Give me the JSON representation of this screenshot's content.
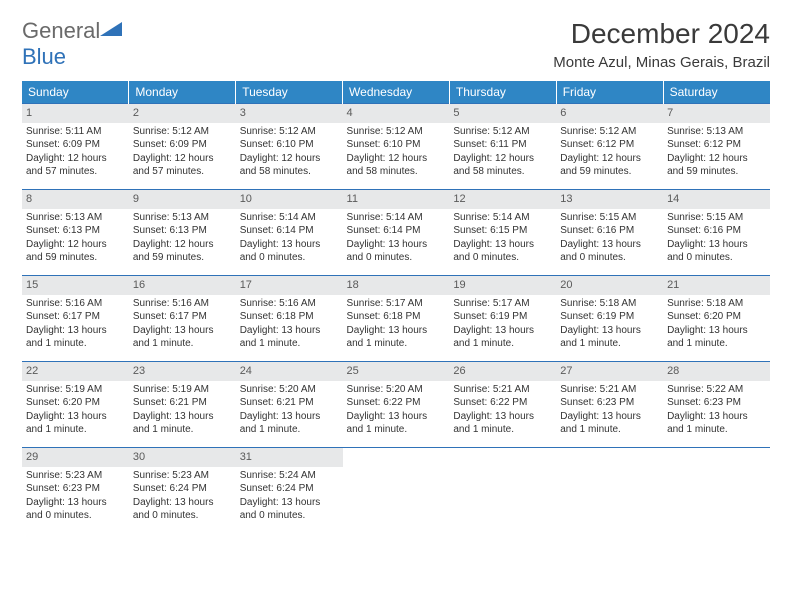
{
  "logo": {
    "text_general": "General",
    "text_blue": "Blue"
  },
  "title": "December 2024",
  "location": "Monte Azul, Minas Gerais, Brazil",
  "colors": {
    "header_bg": "#2f86c5",
    "header_text": "#ffffff",
    "row_border": "#2f72b8",
    "daynum_bg": "#e7e8e9",
    "daynum_text": "#5a5a5a",
    "body_text": "#333333",
    "logo_gray": "#6a6a6a",
    "logo_blue": "#2f72b8"
  },
  "days_of_week": [
    "Sunday",
    "Monday",
    "Tuesday",
    "Wednesday",
    "Thursday",
    "Friday",
    "Saturday"
  ],
  "weeks": [
    [
      {
        "n": "1",
        "sr": "Sunrise: 5:11 AM",
        "ss": "Sunset: 6:09 PM",
        "dl": "Daylight: 12 hours and 57 minutes."
      },
      {
        "n": "2",
        "sr": "Sunrise: 5:12 AM",
        "ss": "Sunset: 6:09 PM",
        "dl": "Daylight: 12 hours and 57 minutes."
      },
      {
        "n": "3",
        "sr": "Sunrise: 5:12 AM",
        "ss": "Sunset: 6:10 PM",
        "dl": "Daylight: 12 hours and 58 minutes."
      },
      {
        "n": "4",
        "sr": "Sunrise: 5:12 AM",
        "ss": "Sunset: 6:10 PM",
        "dl": "Daylight: 12 hours and 58 minutes."
      },
      {
        "n": "5",
        "sr": "Sunrise: 5:12 AM",
        "ss": "Sunset: 6:11 PM",
        "dl": "Daylight: 12 hours and 58 minutes."
      },
      {
        "n": "6",
        "sr": "Sunrise: 5:12 AM",
        "ss": "Sunset: 6:12 PM",
        "dl": "Daylight: 12 hours and 59 minutes."
      },
      {
        "n": "7",
        "sr": "Sunrise: 5:13 AM",
        "ss": "Sunset: 6:12 PM",
        "dl": "Daylight: 12 hours and 59 minutes."
      }
    ],
    [
      {
        "n": "8",
        "sr": "Sunrise: 5:13 AM",
        "ss": "Sunset: 6:13 PM",
        "dl": "Daylight: 12 hours and 59 minutes."
      },
      {
        "n": "9",
        "sr": "Sunrise: 5:13 AM",
        "ss": "Sunset: 6:13 PM",
        "dl": "Daylight: 12 hours and 59 minutes."
      },
      {
        "n": "10",
        "sr": "Sunrise: 5:14 AM",
        "ss": "Sunset: 6:14 PM",
        "dl": "Daylight: 13 hours and 0 minutes."
      },
      {
        "n": "11",
        "sr": "Sunrise: 5:14 AM",
        "ss": "Sunset: 6:14 PM",
        "dl": "Daylight: 13 hours and 0 minutes."
      },
      {
        "n": "12",
        "sr": "Sunrise: 5:14 AM",
        "ss": "Sunset: 6:15 PM",
        "dl": "Daylight: 13 hours and 0 minutes."
      },
      {
        "n": "13",
        "sr": "Sunrise: 5:15 AM",
        "ss": "Sunset: 6:16 PM",
        "dl": "Daylight: 13 hours and 0 minutes."
      },
      {
        "n": "14",
        "sr": "Sunrise: 5:15 AM",
        "ss": "Sunset: 6:16 PM",
        "dl": "Daylight: 13 hours and 0 minutes."
      }
    ],
    [
      {
        "n": "15",
        "sr": "Sunrise: 5:16 AM",
        "ss": "Sunset: 6:17 PM",
        "dl": "Daylight: 13 hours and 1 minute."
      },
      {
        "n": "16",
        "sr": "Sunrise: 5:16 AM",
        "ss": "Sunset: 6:17 PM",
        "dl": "Daylight: 13 hours and 1 minute."
      },
      {
        "n": "17",
        "sr": "Sunrise: 5:16 AM",
        "ss": "Sunset: 6:18 PM",
        "dl": "Daylight: 13 hours and 1 minute."
      },
      {
        "n": "18",
        "sr": "Sunrise: 5:17 AM",
        "ss": "Sunset: 6:18 PM",
        "dl": "Daylight: 13 hours and 1 minute."
      },
      {
        "n": "19",
        "sr": "Sunrise: 5:17 AM",
        "ss": "Sunset: 6:19 PM",
        "dl": "Daylight: 13 hours and 1 minute."
      },
      {
        "n": "20",
        "sr": "Sunrise: 5:18 AM",
        "ss": "Sunset: 6:19 PM",
        "dl": "Daylight: 13 hours and 1 minute."
      },
      {
        "n": "21",
        "sr": "Sunrise: 5:18 AM",
        "ss": "Sunset: 6:20 PM",
        "dl": "Daylight: 13 hours and 1 minute."
      }
    ],
    [
      {
        "n": "22",
        "sr": "Sunrise: 5:19 AM",
        "ss": "Sunset: 6:20 PM",
        "dl": "Daylight: 13 hours and 1 minute."
      },
      {
        "n": "23",
        "sr": "Sunrise: 5:19 AM",
        "ss": "Sunset: 6:21 PM",
        "dl": "Daylight: 13 hours and 1 minute."
      },
      {
        "n": "24",
        "sr": "Sunrise: 5:20 AM",
        "ss": "Sunset: 6:21 PM",
        "dl": "Daylight: 13 hours and 1 minute."
      },
      {
        "n": "25",
        "sr": "Sunrise: 5:20 AM",
        "ss": "Sunset: 6:22 PM",
        "dl": "Daylight: 13 hours and 1 minute."
      },
      {
        "n": "26",
        "sr": "Sunrise: 5:21 AM",
        "ss": "Sunset: 6:22 PM",
        "dl": "Daylight: 13 hours and 1 minute."
      },
      {
        "n": "27",
        "sr": "Sunrise: 5:21 AM",
        "ss": "Sunset: 6:23 PM",
        "dl": "Daylight: 13 hours and 1 minute."
      },
      {
        "n": "28",
        "sr": "Sunrise: 5:22 AM",
        "ss": "Sunset: 6:23 PM",
        "dl": "Daylight: 13 hours and 1 minute."
      }
    ],
    [
      {
        "n": "29",
        "sr": "Sunrise: 5:23 AM",
        "ss": "Sunset: 6:23 PM",
        "dl": "Daylight: 13 hours and 0 minutes."
      },
      {
        "n": "30",
        "sr": "Sunrise: 5:23 AM",
        "ss": "Sunset: 6:24 PM",
        "dl": "Daylight: 13 hours and 0 minutes."
      },
      {
        "n": "31",
        "sr": "Sunrise: 5:24 AM",
        "ss": "Sunset: 6:24 PM",
        "dl": "Daylight: 13 hours and 0 minutes."
      },
      null,
      null,
      null,
      null
    ]
  ]
}
